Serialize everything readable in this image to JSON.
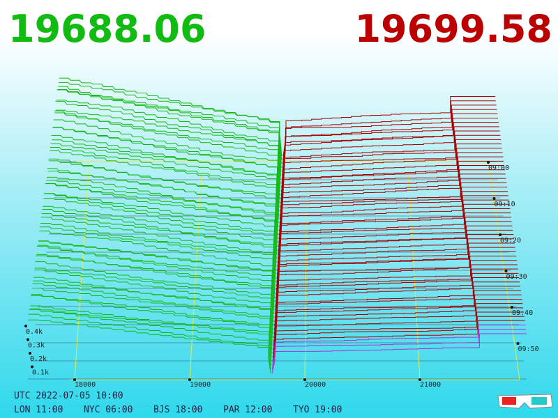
{
  "header": {
    "bid": "19688.06",
    "ask": "19699.58"
  },
  "price_axis": {
    "labels": [
      "18000",
      "19000",
      "20000",
      "21000"
    ]
  },
  "volume_axis": {
    "labels": [
      "0.4k",
      "0.3k",
      "0.2k",
      "0.1k"
    ]
  },
  "time_axis": {
    "labels": [
      "09:00",
      "09:10",
      "09:20",
      "09:30",
      "09:40",
      "09:50"
    ]
  },
  "footer": {
    "utc": "UTC 2022-07-05 10:00",
    "zones": [
      "LON 11:00",
      "NYC 06:00",
      "BJS 18:00",
      "PAR 12:00",
      "TYO 19:00"
    ]
  }
}
